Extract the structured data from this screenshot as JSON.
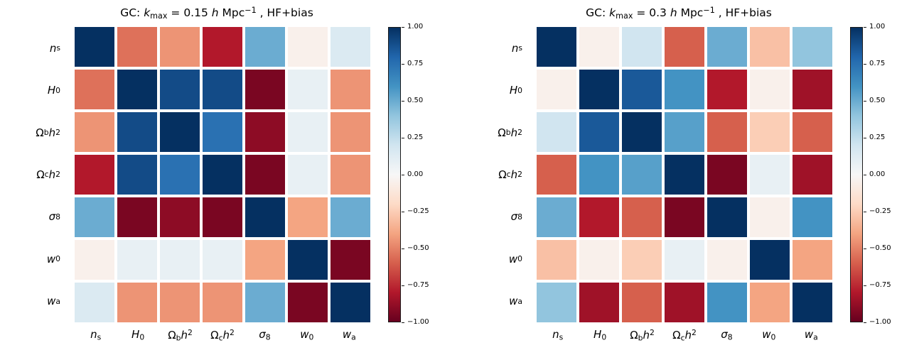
{
  "figure": {
    "background": "#ffffff"
  },
  "colormap_rdbu": [
    "#67001f",
    "#b2182b",
    "#d6604d",
    "#f4a582",
    "#fddbc7",
    "#f7f7f7",
    "#d1e5f0",
    "#92c5de",
    "#4393c3",
    "#2166ac",
    "#053061"
  ],
  "chart_data": [
    {
      "type": "heatmap",
      "title": "GC: *k*_{max} = 0.15 *h* Mpc^{−1} , HF+bias",
      "labels": [
        "*n*_{s}",
        "*H*_{0}",
        "Ω_{b}*h*^{2}",
        "Ω_{c}*h*^{2}",
        "*σ*_{8}",
        "*w*_{0}",
        "*w*_{a}"
      ],
      "matrix": [
        [
          1.0,
          -0.55,
          -0.45,
          -0.8,
          0.5,
          -0.05,
          0.15
        ],
        [
          -0.55,
          1.0,
          0.9,
          0.9,
          -0.95,
          0.08,
          -0.45
        ],
        [
          -0.45,
          0.9,
          1.0,
          0.75,
          -0.9,
          0.08,
          -0.45
        ],
        [
          -0.8,
          0.9,
          0.75,
          1.0,
          -0.95,
          0.08,
          -0.45
        ],
        [
          0.5,
          -0.95,
          -0.9,
          -0.95,
          1.0,
          -0.4,
          0.5
        ],
        [
          -0.05,
          0.08,
          0.08,
          0.08,
          -0.4,
          1.0,
          -0.95
        ],
        [
          0.15,
          -0.45,
          -0.45,
          -0.45,
          0.5,
          -0.95,
          1.0
        ]
      ],
      "vmin": -1,
      "vmax": 1,
      "legend_position": "right-colorbar",
      "colorbar_ticks": [
        "1.00",
        "0.75",
        "0.50",
        "0.25",
        "0.00",
        "−0.25",
        "−0.50",
        "−0.75",
        "−1.00"
      ]
    },
    {
      "type": "heatmap",
      "title": "GC: *k*_{max} = 0.3 *h* Mpc^{−1} , HF+bias",
      "labels": [
        "*n*_{s}",
        "*H*_{0}",
        "Ω_{b}*h*^{2}",
        "Ω_{c}*h*^{2}",
        "*σ*_{8}",
        "*w*_{0}",
        "*w*_{a}"
      ],
      "matrix": [
        [
          1.0,
          -0.05,
          0.2,
          -0.6,
          0.5,
          -0.3,
          0.4
        ],
        [
          -0.05,
          1.0,
          0.85,
          0.6,
          -0.8,
          -0.05,
          -0.85
        ],
        [
          0.2,
          0.85,
          1.0,
          0.55,
          -0.6,
          -0.25,
          -0.6
        ],
        [
          -0.6,
          0.6,
          0.55,
          1.0,
          -0.95,
          0.08,
          -0.85
        ],
        [
          0.5,
          -0.8,
          -0.6,
          -0.95,
          1.0,
          -0.05,
          0.6
        ],
        [
          -0.3,
          -0.05,
          -0.25,
          0.08,
          -0.05,
          1.0,
          -0.4
        ],
        [
          0.4,
          -0.85,
          -0.6,
          -0.85,
          0.6,
          -0.4,
          1.0
        ]
      ],
      "vmin": -1,
      "vmax": 1,
      "legend_position": "right-colorbar",
      "colorbar_ticks": [
        "1.00",
        "0.75",
        "0.50",
        "0.25",
        "0.00",
        "−0.25",
        "−0.50",
        "−0.75",
        "−1.00"
      ]
    }
  ]
}
